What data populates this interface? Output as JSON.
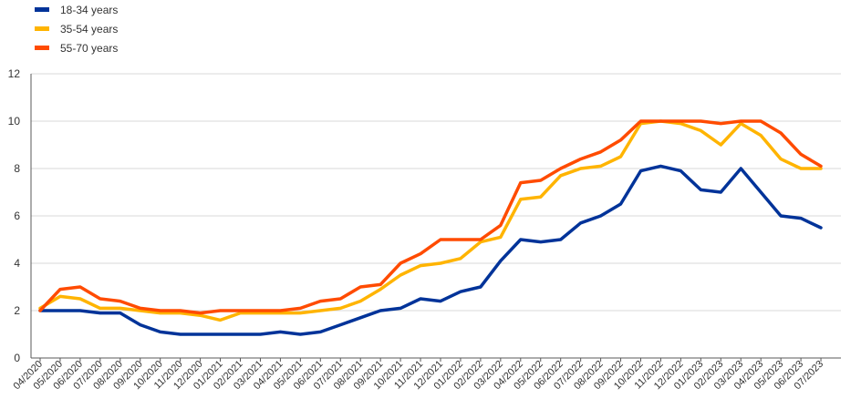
{
  "chart_data": {
    "type": "line",
    "title": "",
    "xlabel": "",
    "ylabel": "",
    "ylim": [
      0,
      12
    ],
    "yticks": [
      "0",
      "2",
      "4",
      "6",
      "8",
      "10",
      "12"
    ],
    "grid": "horizontal",
    "legend_position": "top-left",
    "categories": [
      "04/2020",
      "05/2020",
      "06/2020",
      "07/2020",
      "08/2020",
      "09/2020",
      "10/2020",
      "11/2020",
      "12/2020",
      "01/2021",
      "02/2021",
      "03/2021",
      "04/2021",
      "05/2021",
      "06/2021",
      "07/2021",
      "08/2021",
      "09/2021",
      "10/2021",
      "11/2021",
      "12/2021",
      "01/2022",
      "02/2022",
      "03/2022",
      "04/2022",
      "05/2022",
      "06/2022",
      "07/2022",
      "08/2022",
      "09/2022",
      "10/2022",
      "11/2022",
      "12/2022",
      "01/2023",
      "02/2023",
      "03/2023",
      "04/2023",
      "05/2023",
      "06/2023",
      "07/2023"
    ],
    "series": [
      {
        "name": "18-34 years",
        "color": "#003399",
        "values": [
          2.0,
          2.0,
          2.0,
          1.9,
          1.9,
          1.4,
          1.1,
          1.0,
          1.0,
          1.0,
          1.0,
          1.0,
          1.1,
          1.0,
          1.1,
          1.4,
          1.7,
          2.0,
          2.1,
          2.5,
          2.4,
          2.8,
          3.0,
          4.1,
          5.0,
          4.9,
          5.0,
          5.7,
          6.0,
          6.5,
          7.9,
          8.1,
          7.9,
          7.1,
          7.0,
          8.0,
          7.0,
          6.0,
          5.9,
          5.5
        ]
      },
      {
        "name": "35-54 years",
        "color": "#FFB400",
        "values": [
          2.1,
          2.6,
          2.5,
          2.1,
          2.1,
          2.0,
          1.9,
          1.9,
          1.8,
          1.6,
          1.9,
          1.9,
          1.9,
          1.9,
          2.0,
          2.1,
          2.4,
          2.9,
          3.5,
          3.9,
          4.0,
          4.2,
          4.9,
          5.1,
          6.7,
          6.8,
          7.7,
          8.0,
          8.1,
          8.5,
          9.9,
          10.0,
          9.9,
          9.6,
          9.0,
          9.9,
          9.4,
          8.4,
          8.0,
          8.0
        ]
      },
      {
        "name": "55-70 years",
        "color": "#FF4B00",
        "values": [
          2.0,
          2.9,
          3.0,
          2.5,
          2.4,
          2.1,
          2.0,
          2.0,
          1.9,
          2.0,
          2.0,
          2.0,
          2.0,
          2.1,
          2.4,
          2.5,
          3.0,
          3.1,
          4.0,
          4.4,
          5.0,
          5.0,
          5.0,
          5.6,
          7.4,
          7.5,
          8.0,
          8.4,
          8.7,
          9.2,
          10.0,
          10.0,
          10.0,
          10.0,
          9.9,
          10.0,
          10.0,
          9.5,
          8.6,
          8.1
        ]
      }
    ]
  }
}
